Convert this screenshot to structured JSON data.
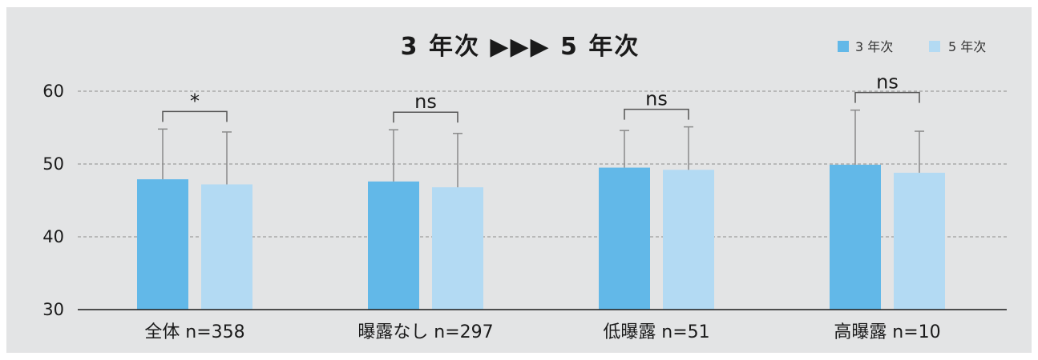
{
  "chart_data": {
    "type": "bar",
    "title": "3 年次 ▶▶▶ 5 年次",
    "categories": [
      "全体 n=358",
      "曝露なし n=297",
      "低曝露 n=51",
      "高曝露 n=10"
    ],
    "series": [
      {
        "name": "3 年次",
        "color": "#62b8e8",
        "values": [
          47.9,
          47.6,
          49.5,
          49.9
        ],
        "error_upper": [
          54.8,
          54.7,
          54.6,
          57.4
        ]
      },
      {
        "name": "5 年次",
        "color": "#b3daf3",
        "values": [
          47.2,
          46.8,
          49.2,
          48.8
        ],
        "error_upper": [
          54.4,
          54.2,
          55.1,
          54.5
        ]
      }
    ],
    "significance": [
      "*",
      "ns",
      "ns",
      "ns"
    ],
    "ylim": [
      30,
      60
    ],
    "yticks": [
      "30",
      "40",
      "50",
      "60"
    ],
    "xlabel": "",
    "ylabel": "",
    "grid": true,
    "legend": "top-right"
  }
}
